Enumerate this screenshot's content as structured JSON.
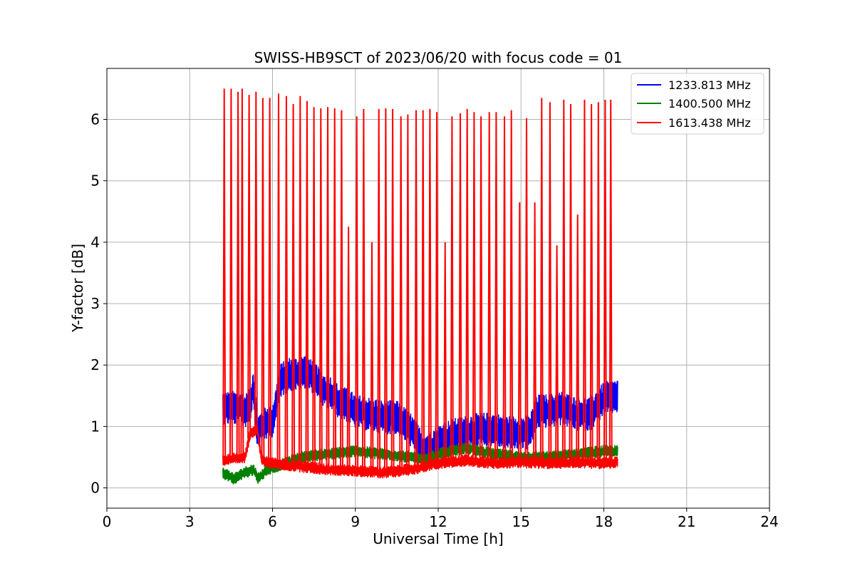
{
  "chart_data": {
    "type": "line",
    "title": "SWISS-HB9SCT of 2023/06/20 with focus code = 01",
    "xlabel": "Universal Time [h]",
    "ylabel": "Y-factor [dB]",
    "xlim": [
      0,
      24
    ],
    "ylim": [
      -0.33,
      6.83
    ],
    "xticks": [
      0,
      3,
      6,
      9,
      12,
      15,
      18,
      21,
      24
    ],
    "yticks": [
      0,
      1,
      2,
      3,
      4,
      5,
      6
    ],
    "grid": true,
    "legend_position": "top-right",
    "series": [
      {
        "name": "1233.813 MHz",
        "color": "#0000ff",
        "x": [
          4.2,
          4.5,
          4.8,
          5.0,
          5.2,
          5.3,
          5.45,
          5.7,
          6.0,
          6.3,
          6.6,
          6.9,
          7.2,
          7.5,
          7.8,
          8.1,
          8.4,
          8.7,
          9.0,
          9.5,
          10.0,
          10.5,
          11.0,
          11.5,
          12.0,
          12.5,
          13.0,
          13.5,
          14.0,
          14.5,
          15.0,
          15.3,
          15.6,
          16.0,
          16.5,
          17.0,
          17.5,
          18.0,
          18.5
        ],
        "values": [
          1.3,
          1.3,
          1.3,
          1.25,
          1.35,
          1.7,
          0.9,
          1.05,
          1.1,
          1.75,
          1.85,
          1.85,
          1.9,
          1.8,
          1.6,
          1.55,
          1.4,
          1.35,
          1.25,
          1.2,
          1.15,
          1.15,
          0.95,
          0.6,
          0.75,
          0.85,
          0.9,
          0.95,
          0.95,
          0.9,
          0.9,
          0.9,
          1.25,
          1.25,
          1.3,
          1.2,
          1.2,
          1.45,
          1.5
        ],
        "band": 0.28
      },
      {
        "name": "1400.500 MHz",
        "color": "#008000",
        "x": [
          4.2,
          4.6,
          5.0,
          5.3,
          5.5,
          5.8,
          6.2,
          7.0,
          8.0,
          9.0,
          10.0,
          11.0,
          11.5,
          12.0,
          12.5,
          13.0,
          14.0,
          15.0,
          16.0,
          17.0,
          18.0,
          18.5
        ],
        "values": [
          0.25,
          0.15,
          0.25,
          0.3,
          0.15,
          0.3,
          0.35,
          0.5,
          0.55,
          0.6,
          0.55,
          0.5,
          0.45,
          0.55,
          0.6,
          0.65,
          0.55,
          0.5,
          0.5,
          0.55,
          0.6,
          0.6
        ],
        "band": 0.1
      },
      {
        "name": "1613.438 MHz",
        "color": "#ff0000",
        "x": [
          4.2,
          5.0,
          5.2,
          5.45,
          5.6,
          6.0,
          7.0,
          8.0,
          9.0,
          10.0,
          11.0,
          12.0,
          12.5,
          13.0,
          14.0,
          15.0,
          16.0,
          17.0,
          18.0,
          18.5
        ],
        "values": [
          0.45,
          0.5,
          0.9,
          0.95,
          0.45,
          0.4,
          0.35,
          0.3,
          0.28,
          0.25,
          0.3,
          0.4,
          0.42,
          0.45,
          0.4,
          0.42,
          0.4,
          0.42,
          0.4,
          0.42
        ],
        "band": 0.1,
        "spike_x": [
          4.25,
          4.5,
          4.75,
          4.9,
          5.15,
          5.4,
          5.65,
          5.9,
          6.22,
          6.5,
          6.75,
          7.0,
          7.25,
          7.5,
          7.75,
          8.0,
          8.25,
          8.5,
          8.75,
          9.05,
          9.3,
          9.6,
          9.85,
          10.1,
          10.35,
          10.65,
          10.9,
          11.2,
          11.45,
          11.7,
          11.95,
          12.25,
          12.5,
          12.8,
          13.05,
          13.3,
          13.55,
          13.85,
          14.1,
          14.4,
          14.65,
          14.95,
          15.2,
          15.5,
          15.75,
          16.05,
          16.3,
          16.55,
          16.8,
          17.05,
          17.3,
          17.55,
          17.8,
          18.05,
          18.25
        ],
        "spike_peaks": [
          6.5,
          6.5,
          6.45,
          6.5,
          6.4,
          6.45,
          6.35,
          6.35,
          6.42,
          6.38,
          6.25,
          6.38,
          6.3,
          6.2,
          6.18,
          6.2,
          6.18,
          6.15,
          4.25,
          6.05,
          6.17,
          4.0,
          6.17,
          6.18,
          6.17,
          6.05,
          6.08,
          6.15,
          6.15,
          6.17,
          6.12,
          4.0,
          6.05,
          6.1,
          6.17,
          6.12,
          6.05,
          6.12,
          6.12,
          6.05,
          6.15,
          4.65,
          6.02,
          4.65,
          6.35,
          6.28,
          3.95,
          6.32,
          6.25,
          4.45,
          6.32,
          6.25,
          6.28,
          6.32,
          6.32
        ]
      }
    ]
  }
}
